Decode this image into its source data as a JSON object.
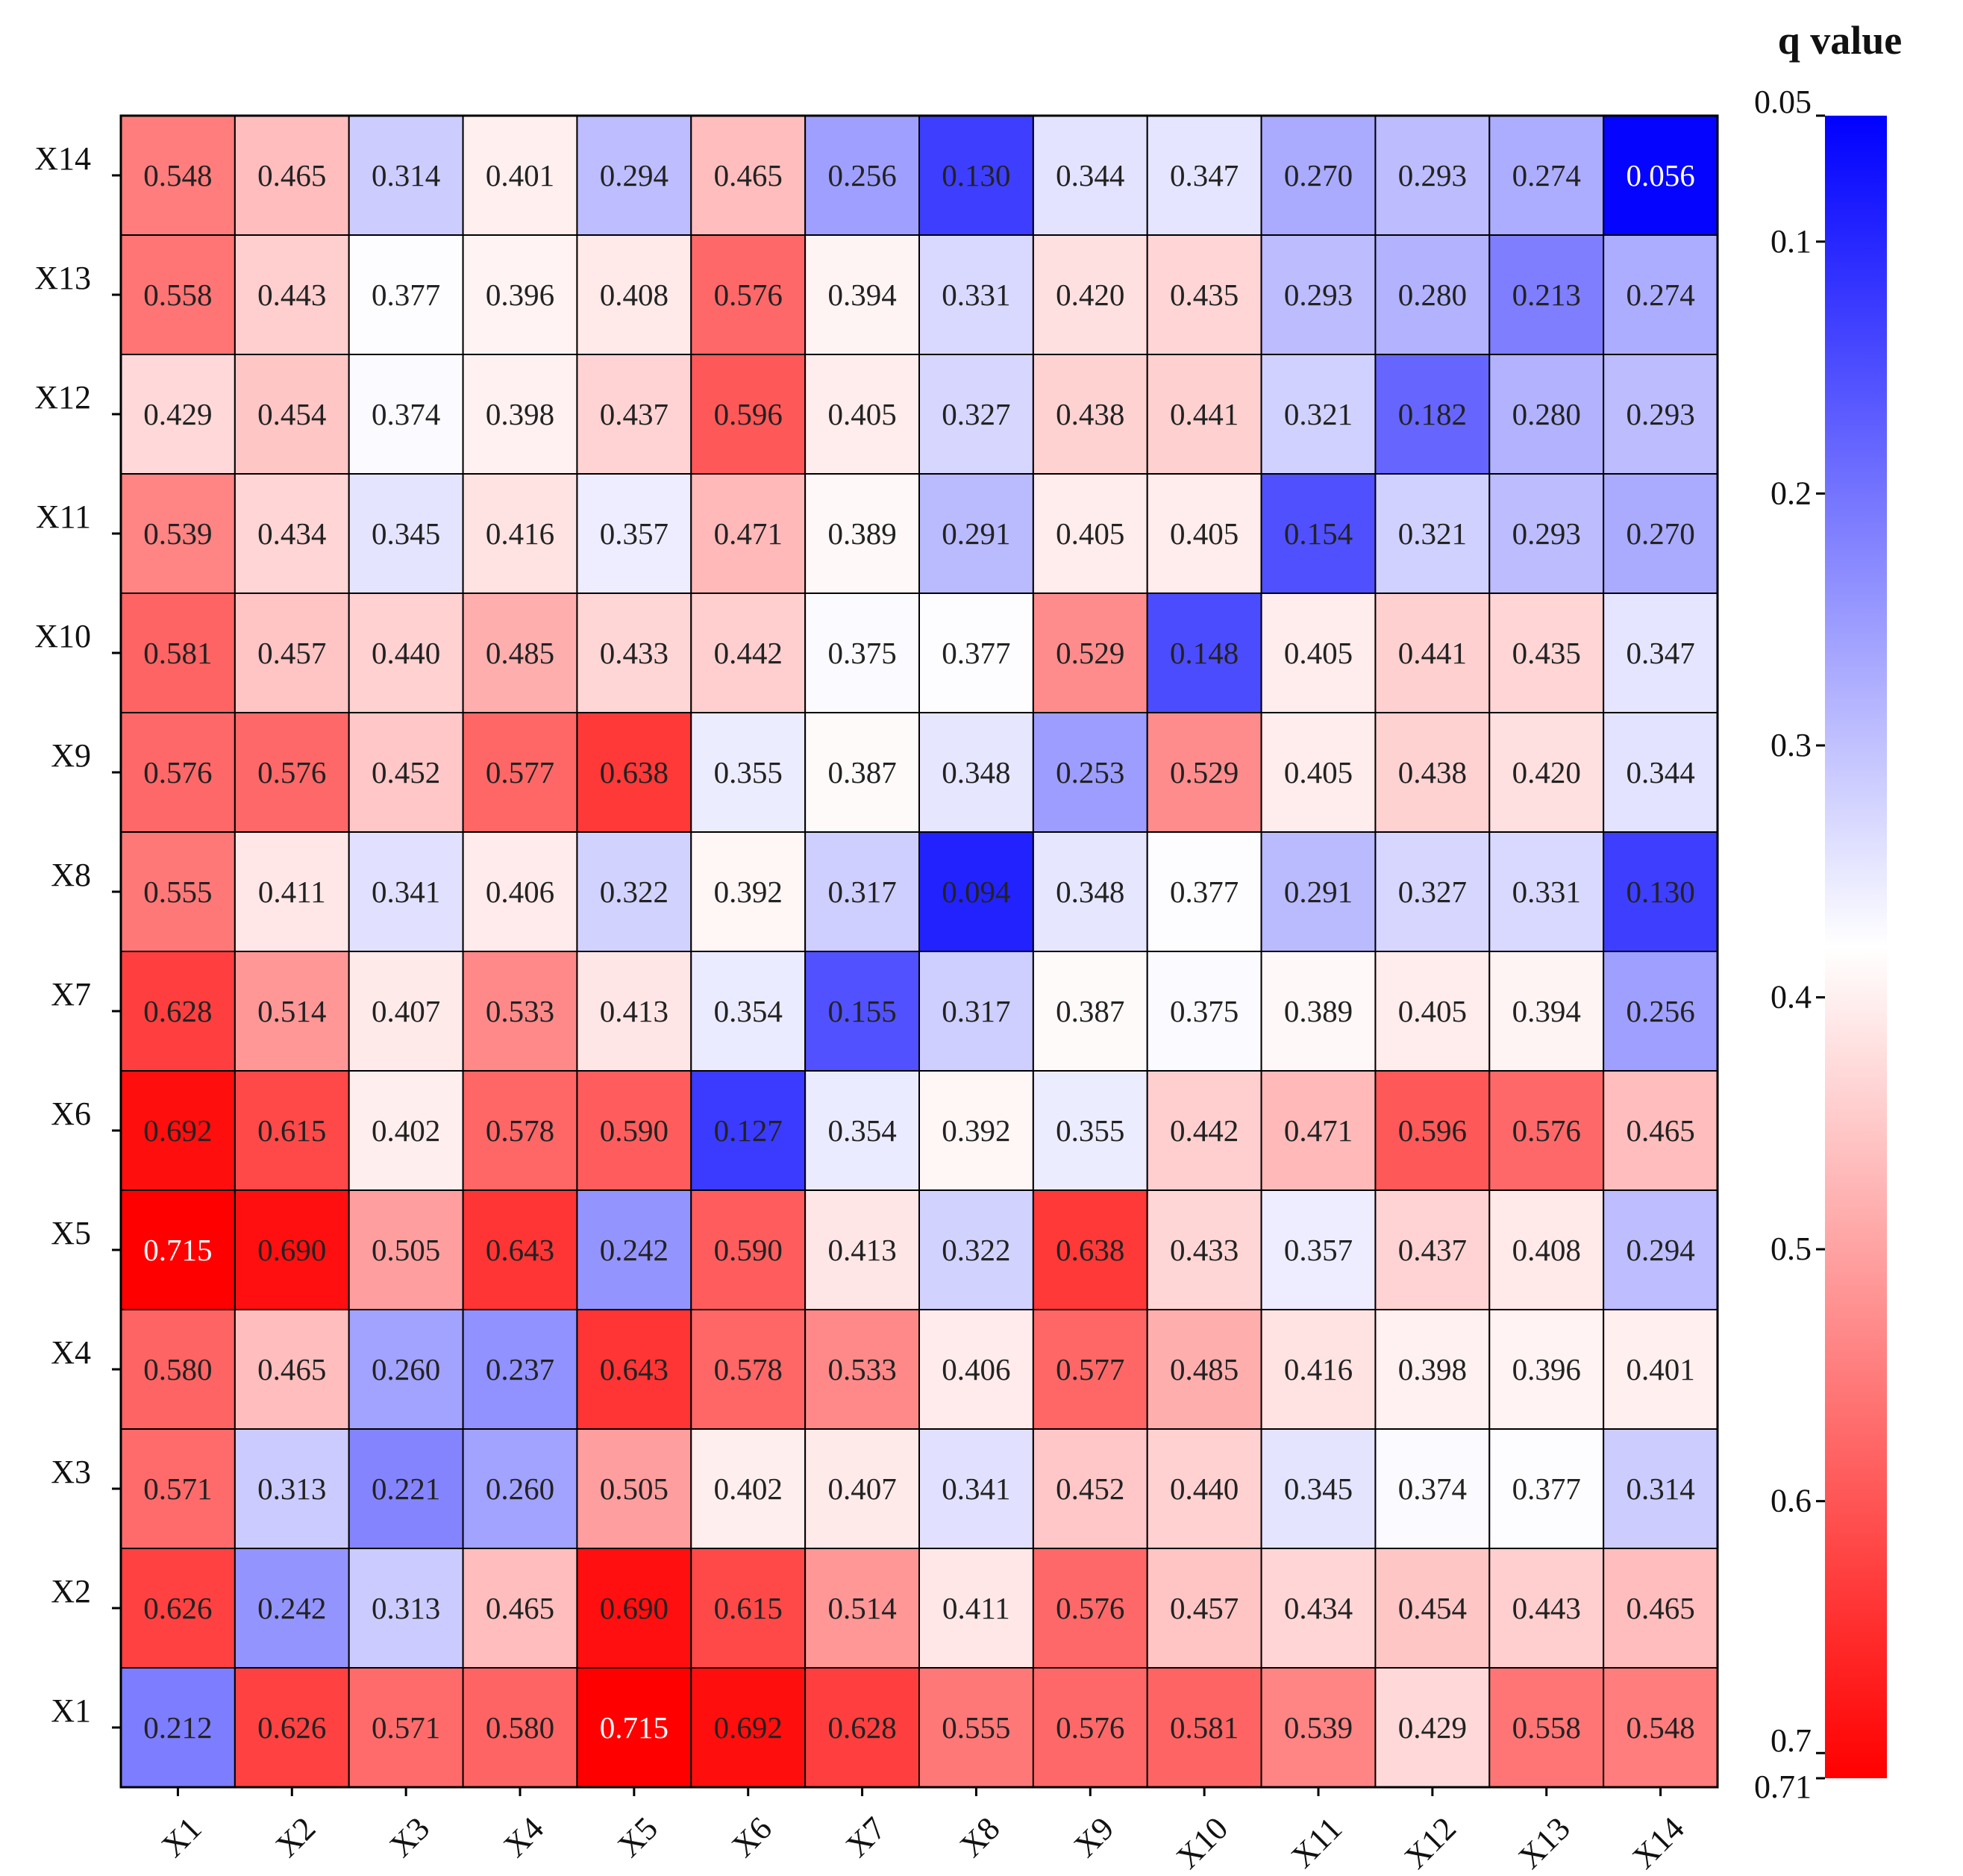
{
  "chart_data": {
    "type": "heatmap",
    "title": "",
    "x_categories": [
      "X1",
      "X2",
      "X3",
      "X4",
      "X5",
      "X6",
      "X7",
      "X8",
      "X9",
      "X10",
      "X11",
      "X12",
      "X13",
      "X14"
    ],
    "y_categories": [
      "X1",
      "X2",
      "X3",
      "X4",
      "X5",
      "X6",
      "X7",
      "X8",
      "X9",
      "X10",
      "X11",
      "X12",
      "X13",
      "X14"
    ],
    "value_labels": [
      [
        "0.212",
        "0.626",
        "0.571",
        "0.580",
        "0.715",
        "0.692",
        "0.628",
        "0.555",
        "0.576",
        "0.581",
        "0.539",
        "0.429",
        "0.558",
        "0.548"
      ],
      [
        "0.626",
        "0.242",
        "0.313",
        "0.465",
        "0.690",
        "0.615",
        "0.514",
        "0.411",
        "0.576",
        "0.457",
        "0.434",
        "0.454",
        "0.443",
        "0.465"
      ],
      [
        "0.571",
        "0.313",
        "0.221",
        "0.260",
        "0.505",
        "0.402",
        "0.407",
        "0.341",
        "0.452",
        "0.440",
        "0.345",
        "0.374",
        "0.377",
        "0.314"
      ],
      [
        "0.580",
        "0.465",
        "0.260",
        "0.237",
        "0.643",
        "0.578",
        "0.533",
        "0.406",
        "0.577",
        "0.485",
        "0.416",
        "0.398",
        "0.396",
        "0.401"
      ],
      [
        "0.715",
        "0.690",
        "0.505",
        "0.643",
        "0.242",
        "0.590",
        "0.413",
        "0.322",
        "0.638",
        "0.433",
        "0.357",
        "0.437",
        "0.408",
        "0.294"
      ],
      [
        "0.692",
        "0.615",
        "0.402",
        "0.578",
        "0.590",
        "0.127",
        "0.354",
        "0.392",
        "0.355",
        "0.442",
        "0.471",
        "0.596",
        "0.576",
        "0.465"
      ],
      [
        "0.628",
        "0.514",
        "0.407",
        "0.533",
        "0.413",
        "0.354",
        "0.155",
        "0.317",
        "0.387",
        "0.375",
        "0.389",
        "0.405",
        "0.394",
        "0.256"
      ],
      [
        "0.555",
        "0.411",
        "0.341",
        "0.406",
        "0.322",
        "0.392",
        "0.317",
        "0.094",
        "0.348",
        "0.377",
        "0.291",
        "0.327",
        "0.331",
        "0.130"
      ],
      [
        "0.576",
        "0.576",
        "0.452",
        "0.577",
        "0.638",
        "0.355",
        "0.387",
        "0.348",
        "0.253",
        "0.529",
        "0.405",
        "0.438",
        "0.420",
        "0.344"
      ],
      [
        "0.581",
        "0.457",
        "0.440",
        "0.485",
        "0.433",
        "0.442",
        "0.375",
        "0.377",
        "0.529",
        "0.148",
        "0.405",
        "0.441",
        "0.435",
        "0.347"
      ],
      [
        "0.539",
        "0.434",
        "0.345",
        "0.416",
        "0.357",
        "0.471",
        "0.389",
        "0.291",
        "0.405",
        "0.405",
        "0.154",
        "0.321",
        "0.293",
        "0.270"
      ],
      [
        "0.429",
        "0.454",
        "0.374",
        "0.398",
        "0.437",
        "0.596",
        "0.405",
        "0.327",
        "0.438",
        "0.441",
        "0.321",
        "0.182",
        "0.280",
        "0.293"
      ],
      [
        "0.558",
        "0.443",
        "0.377",
        "0.396",
        "0.408",
        "0.576",
        "0.394",
        "0.331",
        "0.420",
        "0.435",
        "0.293",
        "0.280",
        "0.213",
        "0.274"
      ],
      [
        "0.548",
        "0.465",
        "0.314",
        "0.401",
        "0.294",
        "0.465",
        "0.256",
        "0.130",
        "0.344",
        "0.347",
        "0.270",
        "0.293",
        "0.274",
        "0.056"
      ]
    ],
    "value_labels_note": "value_labels[i][j] is the cell at row y_categories[i] and column x_categories[j]",
    "colorbar": {
      "title": "q value",
      "range": [
        0.05,
        0.71
      ],
      "ticks": [
        "0.05",
        "0.1",
        "0.2",
        "0.3",
        "0.4",
        "0.5",
        "0.6",
        "0.7",
        "0.71"
      ],
      "colors": {
        "low": "#0000ff",
        "mid": "#ffffff",
        "high": "#ff0000"
      },
      "center": 0.38,
      "orientation": "vertical",
      "placement": "right",
      "direction": "low values at top"
    },
    "xlabel": "",
    "ylabel": "",
    "x_tick_rotation": "45 degrees",
    "grid": "black cell borders"
  }
}
